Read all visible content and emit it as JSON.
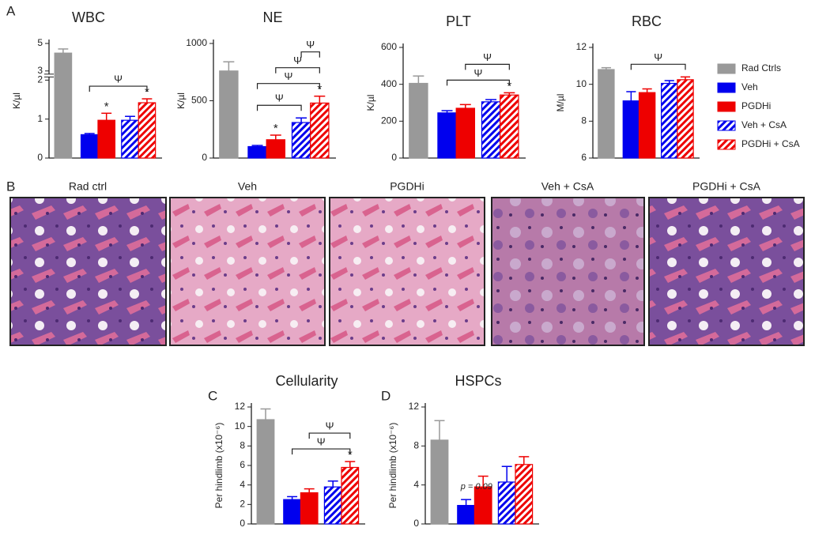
{
  "panels": [
    "A",
    "B",
    "C",
    "D"
  ],
  "legend": [
    {
      "name": "Rad Ctrls",
      "color": "#999999",
      "hatch": false
    },
    {
      "name": "Veh",
      "color": "#0000ee",
      "hatch": false
    },
    {
      "name": "PGDHi",
      "color": "#ee0000",
      "hatch": false
    },
    {
      "name": "Veh + CsA",
      "color": "#0000ee",
      "hatch": true
    },
    {
      "name": "PGDHi + CsA",
      "color": "#ee0000",
      "hatch": true
    }
  ],
  "histology": [
    "Rad ctrl",
    "Veh",
    "PGDHi",
    "Veh + CsA",
    "PGDHi + CsA"
  ],
  "chart_data": [
    {
      "type": "bar",
      "title": "WBC",
      "y_label": "K/µl",
      "categories": [
        null,
        null,
        null,
        null,
        null
      ],
      "values": [
        4.3,
        0.6,
        0.97,
        0.97,
        1.42
      ],
      "errors": [
        0.3,
        0.03,
        0.18,
        0.1,
        0.1
      ],
      "ylim": [
        0,
        5
      ],
      "yticks": [
        0,
        1,
        2,
        3,
        5
      ],
      "axis_break": [
        2,
        3
      ],
      "stars": [
        {
          "category": 2,
          "text": "*"
        },
        {
          "category": 4,
          "text": "*"
        }
      ],
      "brackets": [
        {
          "from": 1,
          "to": 4,
          "text": "Ψ"
        }
      ]
    },
    {
      "type": "bar",
      "title": "NE",
      "y_label": "K/µl",
      "categories": [
        null,
        null,
        null,
        null,
        null
      ],
      "values": [
        760,
        100,
        160,
        310,
        480
      ],
      "errors": [
        80,
        10,
        40,
        40,
        60
      ],
      "ylim": [
        0,
        1000
      ],
      "yticks": [
        0,
        500,
        1000
      ],
      "stars": [
        {
          "category": 2,
          "text": "*"
        },
        {
          "category": 4,
          "text": "*"
        }
      ],
      "brackets": [
        {
          "from": 1,
          "to": 3,
          "text": "Ψ"
        },
        {
          "from": 1,
          "to": 4,
          "text": "Ψ"
        },
        {
          "from": 2,
          "to": 4,
          "text": "Ψ"
        },
        {
          "from": 3,
          "to": 4,
          "text": "Ψ"
        }
      ]
    },
    {
      "type": "bar",
      "title": "PLT",
      "y_label": "K/µl",
      "categories": [
        null,
        null,
        null,
        null,
        null
      ],
      "values": [
        405,
        245,
        270,
        305,
        342
      ],
      "errors": [
        40,
        12,
        20,
        12,
        12
      ],
      "ylim": [
        0,
        600
      ],
      "yticks": [
        0,
        200,
        400,
        600
      ],
      "stars": [
        {
          "category": 4,
          "text": "*"
        }
      ],
      "brackets": [
        {
          "from": 1,
          "to": 4,
          "text": "Ψ"
        },
        {
          "from": 2,
          "to": 4,
          "text": "Ψ"
        }
      ]
    },
    {
      "type": "bar",
      "title": "RBC",
      "y_label": "M/µl",
      "categories": [
        null,
        null,
        null,
        null,
        null
      ],
      "values": [
        10.8,
        9.1,
        9.55,
        10.05,
        10.25
      ],
      "errors": [
        0.1,
        0.5,
        0.2,
        0.15,
        0.15
      ],
      "ylim": [
        6,
        12
      ],
      "yticks": [
        6,
        8,
        10,
        12
      ],
      "brackets": [
        {
          "from": 1,
          "to": 4,
          "text": "Ψ"
        }
      ]
    },
    {
      "type": "bar",
      "title": "Cellularity",
      "y_label": "Per hindlimb (x10⁻⁶)",
      "categories": [
        null,
        null,
        null,
        null,
        null
      ],
      "values": [
        10.7,
        2.5,
        3.2,
        3.8,
        5.8
      ],
      "errors": [
        1.1,
        0.3,
        0.4,
        0.6,
        0.6
      ],
      "ylim": [
        0,
        12
      ],
      "yticks": [
        0,
        2,
        4,
        6,
        8,
        10,
        12
      ],
      "stars": [
        {
          "category": 4,
          "text": "*"
        }
      ],
      "brackets": [
        {
          "from": 1,
          "to": 4,
          "text": "Ψ"
        },
        {
          "from": 2,
          "to": 4,
          "text": "Ψ"
        }
      ]
    },
    {
      "type": "bar",
      "title": "HSPCs",
      "y_label": "Per hindlimb (x10⁻⁶)",
      "categories": [
        null,
        null,
        null,
        null,
        null
      ],
      "values": [
        8.6,
        1.9,
        3.8,
        4.3,
        6.1
      ],
      "errors": [
        2,
        0.6,
        1.1,
        1.6,
        0.8
      ],
      "ylim": [
        0,
        12
      ],
      "yticks": [
        0,
        4,
        8,
        12
      ],
      "annotations": [
        {
          "category": 1,
          "text": "p = 0.09"
        }
      ]
    }
  ]
}
